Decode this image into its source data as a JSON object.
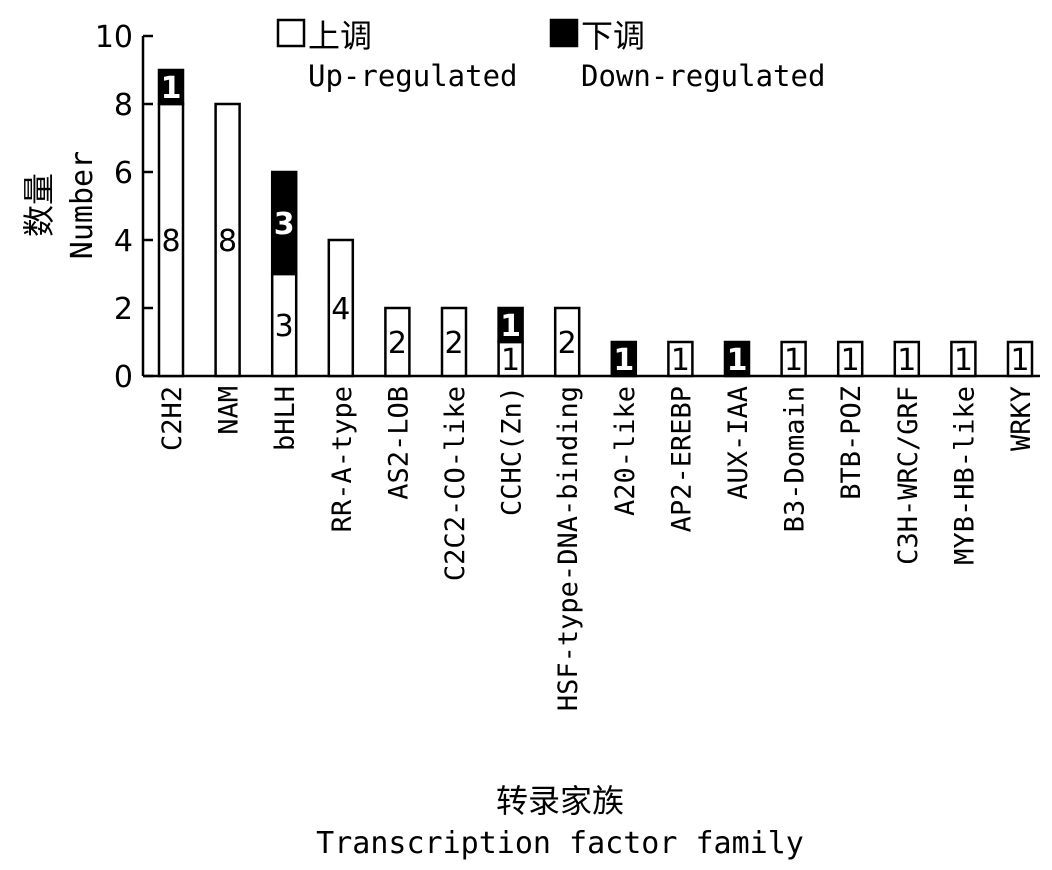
{
  "chart_data": {
    "type": "bar",
    "stacked": true,
    "title": "",
    "xlabel_cn": "转录家族",
    "xlabel_en": "Transcription factor family",
    "ylabel_cn": "数量",
    "ylabel_en": "Number",
    "ylim": [
      0,
      10
    ],
    "yticks": [
      "0",
      "2",
      "4",
      "6",
      "8",
      "10"
    ],
    "legend_position": "top",
    "categories": [
      "C2H2",
      "NAM",
      "bHLH",
      "RR-A-type",
      "AS2-LOB",
      "C2C2-CO-like",
      "CCHC(Zn)",
      "HSF-type-DNA-binding",
      "A20-like",
      "AP2-EREBP",
      "AUX-IAA",
      "B3-Domain",
      "BTB-POZ",
      "C3H-WRC/GRF",
      "MYB-HB-like",
      "WRKY"
    ],
    "series": [
      {
        "name_cn": "上调",
        "name_en": "Up-regulated",
        "color": "#ffffff",
        "values": [
          8,
          8,
          3,
          4,
          2,
          2,
          1,
          2,
          0,
          1,
          0,
          1,
          1,
          1,
          1,
          1
        ],
        "value_labels": [
          "8",
          "8",
          "3",
          "4",
          "2",
          "2",
          "1",
          "2",
          "",
          "1",
          "",
          "1",
          "1",
          "1",
          "1",
          "1"
        ]
      },
      {
        "name_cn": "下调",
        "name_en": "Down-regulated",
        "color": "#000000",
        "values": [
          1,
          0,
          3,
          0,
          0,
          0,
          1,
          0,
          1,
          0,
          1,
          0,
          0,
          0,
          0,
          0
        ],
        "value_labels": [
          "1",
          "",
          "3",
          "",
          "",
          "",
          "1",
          "",
          "1",
          "",
          "1",
          "",
          "",
          "",
          "",
          ""
        ]
      }
    ]
  }
}
